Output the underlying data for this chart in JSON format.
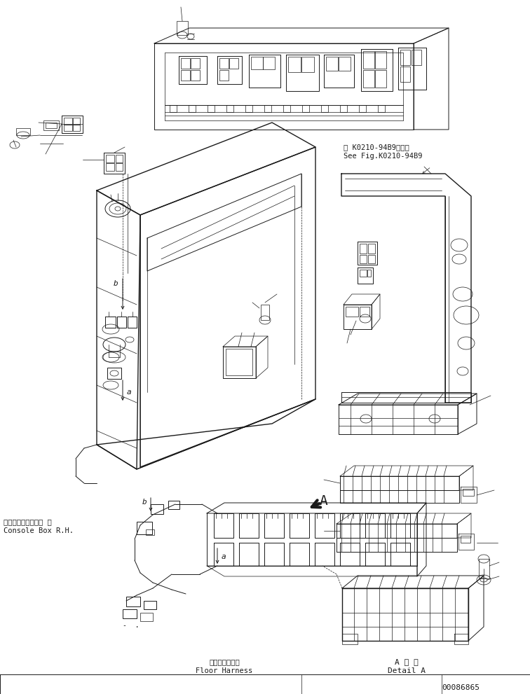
{
  "bg_color": "#ffffff",
  "line_color": "#1a1a1a",
  "fig_width": 7.56,
  "fig_height": 9.91,
  "dpi": 100,
  "labels": {
    "console_box_jp": "コンソールボックス 右",
    "console_box_en": "Console Box R.H.",
    "floor_harness_jp": "フロアハーネス",
    "floor_harness_en": "Floor Harness",
    "detail_jp": "A 詳 細",
    "detail_en": "Detail A",
    "see_fig_jp": "第 K0210-94B9図参照",
    "see_fig_en": "See Fig.K0210-94B9",
    "part_number": "00086865",
    "label_a": "A",
    "label_b1": "b",
    "label_b2": "b",
    "label_a2": "a",
    "label_a3": "a",
    "dash": "-  ."
  }
}
